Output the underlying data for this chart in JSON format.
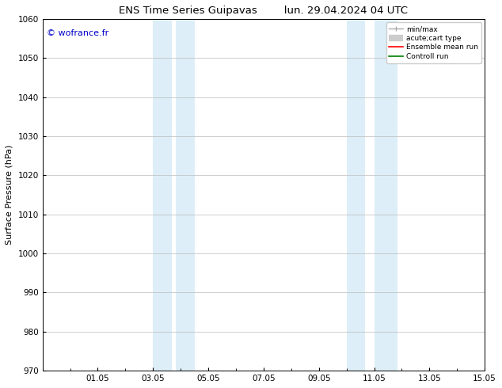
{
  "title": "ENS Time Series Guipavas        lun. 29.04.2024 04 UTC",
  "ylabel": "Surface Pressure (hPa)",
  "ylim": [
    970,
    1060
  ],
  "yticks": [
    970,
    980,
    990,
    1000,
    1010,
    1020,
    1030,
    1040,
    1050,
    1060
  ],
  "xlim": [
    0,
    16
  ],
  "xtick_labels": [
    "01.05",
    "03.05",
    "05.05",
    "07.05",
    "09.05",
    "11.05",
    "13.05",
    "15.05"
  ],
  "xtick_positions": [
    2,
    4,
    6,
    8,
    10,
    12,
    14,
    16
  ],
  "shaded_bands": [
    {
      "x_start": 4.0,
      "x_end": 4.67
    },
    {
      "x_start": 4.83,
      "x_end": 5.5
    },
    {
      "x_start": 11.0,
      "x_end": 11.67
    },
    {
      "x_start": 12.0,
      "x_end": 12.83
    }
  ],
  "shaded_color": "#ddeef8",
  "watermark_text": "© wofrance.fr",
  "watermark_color": "#0000cc",
  "legend_entries": [
    {
      "label": "min/max",
      "color": "#aaaaaa",
      "lw": 1.0
    },
    {
      "label": "acute;cart type",
      "color": "#cccccc",
      "lw": 6
    },
    {
      "label": "Ensemble mean run",
      "color": "red",
      "lw": 1.2
    },
    {
      "label": "Controll run",
      "color": "green",
      "lw": 1.2
    }
  ],
  "bg_color": "#ffffff",
  "grid_color": "#bbbbbb",
  "title_fontsize": 9.5,
  "ylabel_fontsize": 8,
  "tick_fontsize": 7.5,
  "watermark_fontsize": 8,
  "legend_fontsize": 6.5
}
